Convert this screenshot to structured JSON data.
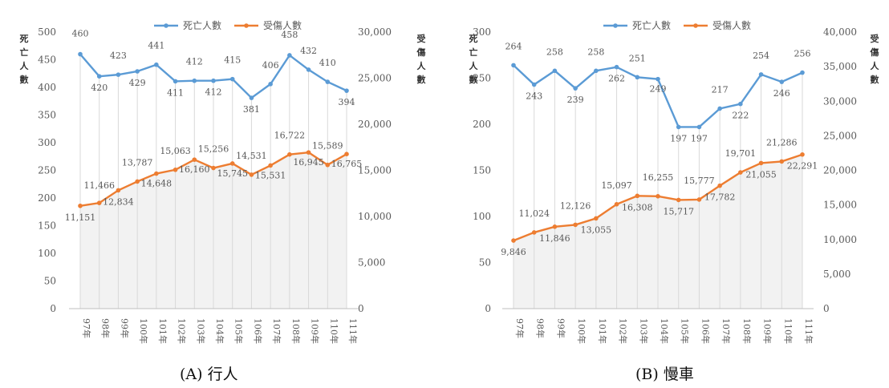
{
  "captions": {
    "a": "(A) 行人",
    "b": "(B) 慢車"
  },
  "colors": {
    "deaths": "#5b9bd5",
    "injuries": "#ed7d31",
    "grid": "#d9d9d9",
    "text": "#595959"
  },
  "chart_data": [
    {
      "type": "line",
      "categories": [
        "97年",
        "98年",
        "99年",
        "100年",
        "101年",
        "102年",
        "103年",
        "104年",
        "105年",
        "106年",
        "107年",
        "108年",
        "109年",
        "110年",
        "111年"
      ],
      "ylabel": "死亡人數",
      "y2label": "受傷人數",
      "ylim": [
        0,
        500
      ],
      "y2lim": [
        0,
        30000
      ],
      "yticks": [
        0,
        50,
        100,
        150,
        200,
        250,
        300,
        350,
        400,
        450,
        500
      ],
      "y2ticks": [
        "0",
        "5,000",
        "10,000",
        "15,000",
        "20,000",
        "25,000",
        "30,000"
      ],
      "legend_position": "top",
      "series": [
        {
          "name": "死亡人數",
          "axis": "left",
          "values": [
            460,
            420,
            423,
            429,
            441,
            411,
            412,
            412,
            415,
            381,
            406,
            458,
            432,
            410,
            394
          ],
          "labels": [
            "460",
            "420",
            "423",
            "429",
            "441",
            "411",
            "412",
            "412",
            "415",
            "381",
            "406",
            "458",
            "432",
            "410",
            "394"
          ]
        },
        {
          "name": "受傷人數",
          "axis": "right",
          "values": [
            11151,
            11466,
            12834,
            13787,
            14648,
            15063,
            16160,
            15256,
            15745,
            14531,
            15531,
            16722,
            16945,
            15589,
            16765
          ],
          "labels": [
            "11,151",
            "11,466",
            "12,834",
            "13,787",
            "14,648",
            "15,063",
            "16,160",
            "15,256",
            "15,745",
            "14,531",
            "15,531",
            "16,722",
            "16,945",
            "15,589",
            "16,765"
          ]
        }
      ]
    },
    {
      "type": "line",
      "categories": [
        "97年",
        "98年",
        "99年",
        "100年",
        "101年",
        "102年",
        "103年",
        "104年",
        "105年",
        "106年",
        "107年",
        "108年",
        "109年",
        "110年",
        "111年"
      ],
      "ylabel": "死亡人數",
      "y2label": "受傷人數",
      "ylim": [
        0,
        300
      ],
      "y2lim": [
        0,
        40000
      ],
      "yticks": [
        0,
        50,
        100,
        150,
        200,
        250,
        300
      ],
      "y2ticks": [
        "0",
        "5,000",
        "10,000",
        "15,000",
        "20,000",
        "25,000",
        "30,000",
        "35,000",
        "40,000"
      ],
      "legend_position": "top",
      "series": [
        {
          "name": "死亡人數",
          "axis": "left",
          "values": [
            264,
            243,
            258,
            239,
            258,
            262,
            251,
            249,
            197,
            197,
            217,
            222,
            254,
            246,
            256
          ],
          "labels": [
            "264",
            "243",
            "258",
            "239",
            "258",
            "262",
            "251",
            "249",
            "197",
            "197",
            "217",
            "222",
            "254",
            "246",
            "256"
          ]
        },
        {
          "name": "受傷人數",
          "axis": "right",
          "values": [
            9846,
            11024,
            11846,
            12126,
            13055,
            15097,
            16308,
            16255,
            15717,
            15777,
            17782,
            19701,
            21055,
            21286,
            22291
          ],
          "labels": [
            "9,846",
            "11,024",
            "11,846",
            "12,126",
            "13,055",
            "15,097",
            "16,308",
            "16,255",
            "15,717",
            "15,777",
            "17,782",
            "19,701",
            "21,055",
            "21,286",
            "22,291"
          ]
        }
      ]
    }
  ]
}
